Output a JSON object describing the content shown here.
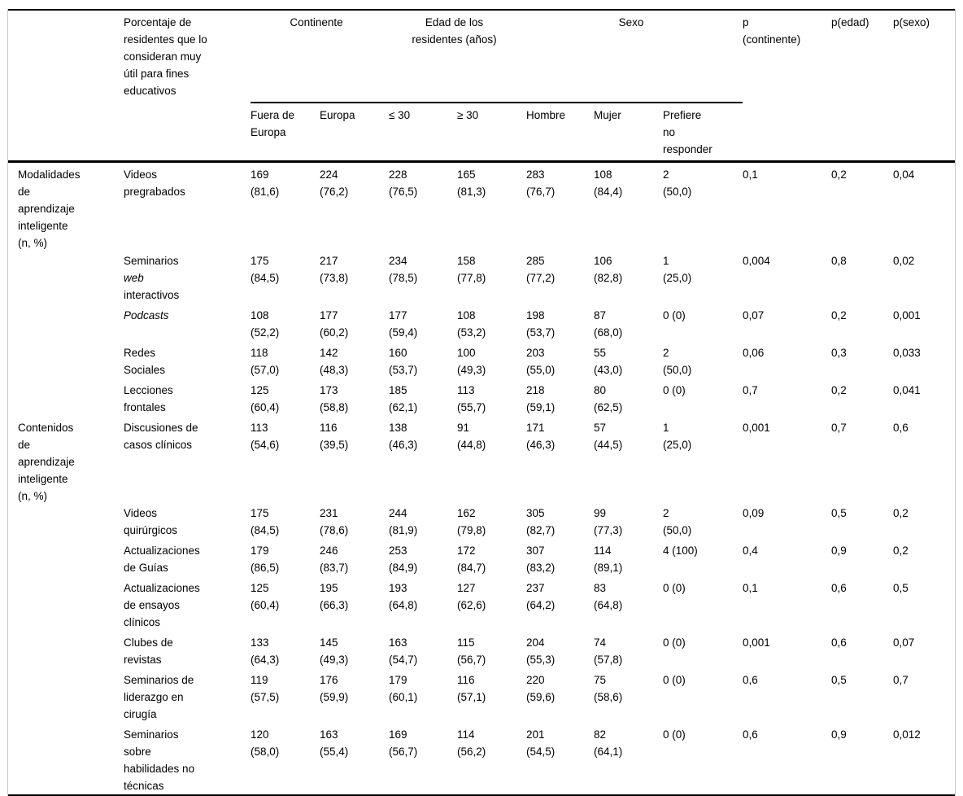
{
  "table": {
    "header": {
      "measure_label": "Porcentaje de<br>residentes que lo<br>consideran muy<br>útil para fines<br>educativos",
      "groups": [
        {
          "label": "Continente"
        },
        {
          "label": "Edad de los<br>residentes (años)"
        },
        {
          "label": "Sexo"
        }
      ],
      "subheaders": [
        "Fuera de<br>Europa",
        "Europa",
        "≤ 30",
        "≥ 30",
        "Hombre",
        "Mujer",
        "Prefiere<br>no<br>responder"
      ],
      "p_headers": [
        "p<br>(continente)",
        "p(edad)",
        "p(sexo)"
      ]
    },
    "body": {
      "groups": [
        {
          "label": "Modalidades<br>de<br>aprendizaje<br>inteligente<br>(n, %)",
          "rows": [
            {
              "label": "Videos<br>pregrabados",
              "cells": [
                "169\n(81,6)",
                "224\n(76,2)",
                "228\n(76,5)",
                "165\n(81,3)",
                "283\n(76,7)",
                "108\n(84,4)",
                "2\n(50,0)",
                "0,1",
                "0,2",
                "0,04"
              ]
            },
            {
              "label": "Seminarios<br><i>web</i><br>interactivos",
              "cells": [
                "175\n(84,5)",
                "217\n(73,8)",
                "234\n(78,5)",
                "158\n(77,8)",
                "285\n(77,2)",
                "106\n(82,8)",
                "1\n(25,0)",
                "0,004",
                "0,8",
                "0,02"
              ]
            },
            {
              "label": "<i>Podcasts</i>",
              "cells": [
                "108\n(52,2)",
                "177\n(60,2)",
                "177\n(59,4)",
                "108\n(53,2)",
                "198\n(53,7)",
                "87\n(68,0)",
                "0 (0)",
                "0,07",
                "0,2",
                "0,001"
              ]
            },
            {
              "label": "Redes<br>Sociales",
              "cells": [
                "118\n(57,0)",
                "142\n(48,3)",
                "160\n(53,7)",
                "100\n(49,3)",
                "203\n(55,0)",
                "55\n(43,0)",
                "2\n(50,0)",
                "0,06",
                "0,3",
                "0,033"
              ]
            },
            {
              "label": "Lecciones<br>frontales",
              "cells": [
                "125\n(60,4)",
                "173\n(58,8)",
                "185\n(62,1)",
                "113\n(55,7)",
                "218\n(59,1)",
                "80\n(62,5)",
                "0 (0)",
                "0,7",
                "0,2",
                "0,041"
              ]
            }
          ]
        },
        {
          "label": "Contenidos<br>de<br>aprendizaje<br>inteligente<br>(n, %)",
          "rows": [
            {
              "label": "Discusiones de<br>casos clínicos",
              "cells": [
                "113\n(54,6)",
                "116\n(39,5)",
                "138\n(46,3)",
                "91\n(44,8)",
                "171\n(46,3)",
                "57\n(44,5)",
                "1\n(25,0)",
                "0,001",
                "0,7",
                "0,6"
              ]
            },
            {
              "label": "Videos<br>quirúrgicos",
              "cells": [
                "175\n(84,5)",
                "231\n(78,6)",
                "244\n(81,9)",
                "162\n(79,8)",
                "305\n(82,7)",
                "99\n(77,3)",
                "2\n(50,0)",
                "0,09",
                "0,5",
                "0,2"
              ]
            },
            {
              "label": "Actualizaciones<br>de Guías",
              "cells": [
                "179\n(86,5)",
                "246\n(83,7)",
                "253\n(84,9)",
                "172\n(84,7)",
                "307\n(83,2)",
                "114\n(89,1)",
                "4 (100)",
                "0,4",
                "0,9",
                "0,2"
              ]
            },
            {
              "label": "Actualizaciones<br>de ensayos<br>clínicos",
              "cells": [
                "125\n(60,4)",
                "195\n(66,3)",
                "193\n(64,8)",
                "127\n(62,6)",
                "237\n(64,2)",
                "83\n(64,8)",
                "0 (0)",
                "0,1",
                "0,6",
                "0,5"
              ]
            },
            {
              "label": "Clubes de<br>revistas",
              "cells": [
                "133\n(64,3)",
                "145\n(49,3)",
                "163\n(54,7)",
                "115\n(56,7)",
                "204\n(55,3)",
                "74\n(57,8)",
                "0 (0)",
                "0,001",
                "0,6",
                "0,07"
              ]
            },
            {
              "label": "Seminarios de<br>liderazgo en<br>cirugía",
              "cells": [
                "119\n(57,5)",
                "176\n(59,9)",
                "179\n(60,1)",
                "116\n(57,1)",
                "220\n(59,6)",
                "75\n(58,6)",
                "0 (0)",
                "0,6",
                "0,5",
                "0,7"
              ]
            },
            {
              "label": "Seminarios<br>sobre<br>habilidades no<br>técnicas",
              "cells": [
                "120\n(58,0)",
                "163\n(55,4)",
                "169\n(56,7)",
                "114\n(56,2)",
                "201\n(54,5)",
                "82\n(64,1)",
                "0 (0)",
                "0,6",
                "0,9",
                "0,012"
              ]
            }
          ]
        }
      ]
    }
  }
}
